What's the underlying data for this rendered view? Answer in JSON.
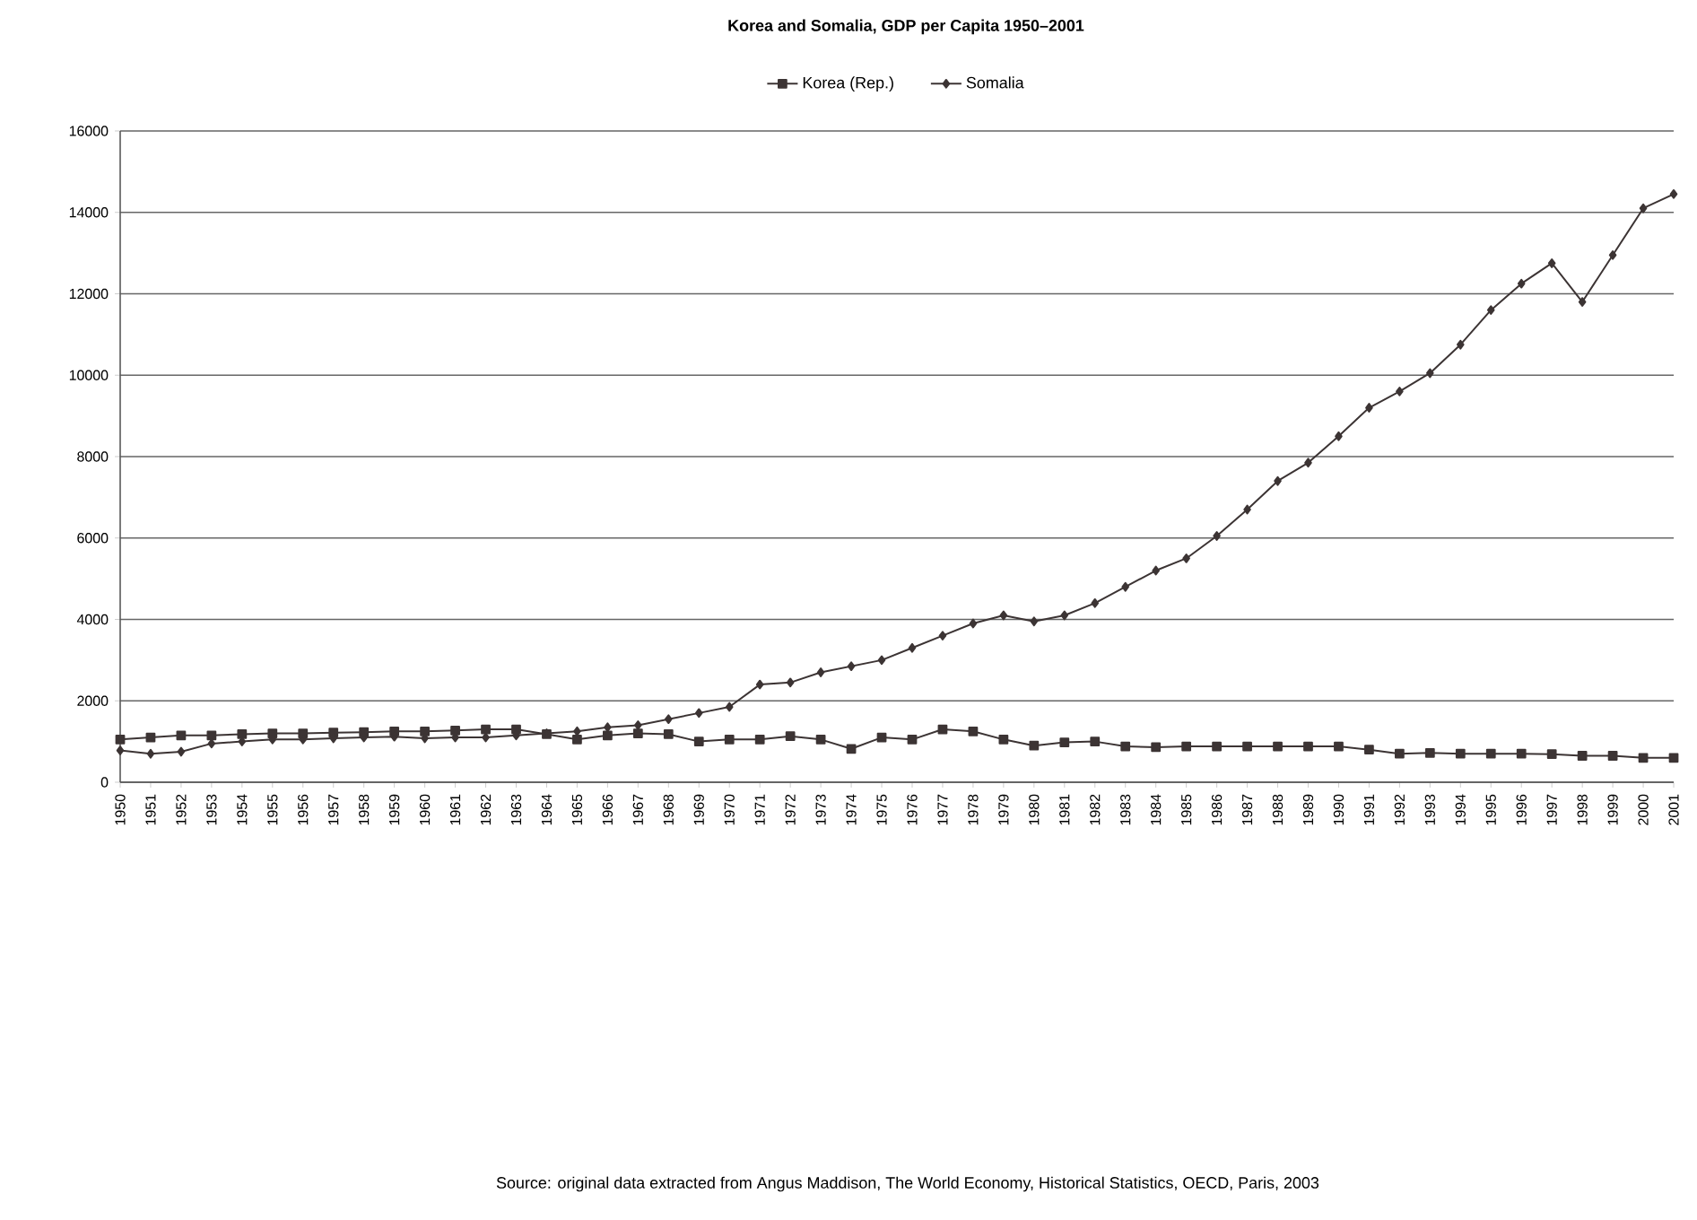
{
  "chart_data": {
    "type": "line",
    "title": "Korea and Somalia, GDP per Capita 1950–2001",
    "categories": [
      "1950",
      "1951",
      "1952",
      "1953",
      "1954",
      "1955",
      "1956",
      "1957",
      "1958",
      "1959",
      "1960",
      "1961",
      "1962",
      "1963",
      "1964",
      "1965",
      "1966",
      "1967",
      "1968",
      "1969",
      "1970",
      "1971",
      "1972",
      "1973",
      "1974",
      "1975",
      "1976",
      "1977",
      "1978",
      "1979",
      "1980",
      "1981",
      "1982",
      "1983",
      "1984",
      "1985",
      "1986",
      "1987",
      "1988",
      "1989",
      "1990",
      "1991",
      "1992",
      "1993",
      "1994",
      "1995",
      "1996",
      "1997",
      "1998",
      "1999",
      "2000",
      "2001"
    ],
    "series": [
      {
        "name": "Korea (Rep.)",
        "color": "#3c3434",
        "marker": "square",
        "values": [
          1050,
          1100,
          1150,
          1150,
          1180,
          1200,
          1200,
          1220,
          1230,
          1250,
          1250,
          1270,
          1300,
          1300,
          1180,
          1050,
          1150,
          1200,
          1180,
          1000,
          1050,
          1050,
          1130,
          1050,
          820,
          1100,
          1050,
          1300,
          1250,
          1050,
          900,
          980,
          1000,
          880,
          860,
          880,
          880,
          880,
          880,
          880,
          880,
          800,
          700,
          720,
          700,
          700,
          700,
          690,
          650,
          650,
          600,
          600
        ]
      },
      {
        "name": "Somalia",
        "color": "#3c3434",
        "marker": "diamond",
        "values": [
          780,
          700,
          750,
          950,
          1000,
          1050,
          1050,
          1080,
          1100,
          1120,
          1080,
          1100,
          1100,
          1150,
          1200,
          1250,
          1350,
          1400,
          1550,
          1700,
          1850,
          2400,
          2450,
          2700,
          2850,
          3000,
          3300,
          3600,
          3900,
          4100,
          3950,
          4100,
          4400,
          4800,
          5200,
          5500,
          6050,
          6700,
          7400,
          7850,
          8500,
          9200,
          9600,
          10050,
          10750,
          11600,
          12250,
          12750,
          11800,
          12950,
          14100,
          14450
        ]
      }
    ],
    "ylim": [
      0,
      16000
    ],
    "yticks": [
      0,
      2000,
      4000,
      6000,
      8000,
      10000,
      12000,
      14000,
      16000
    ],
    "grid": "y",
    "legend": "top",
    "line_style": "solid",
    "annotations": [
      "Source: original data extracted from Angus Maddison, The World Economy, Historical Statistics, OECD, Paris, 2003"
    ]
  }
}
